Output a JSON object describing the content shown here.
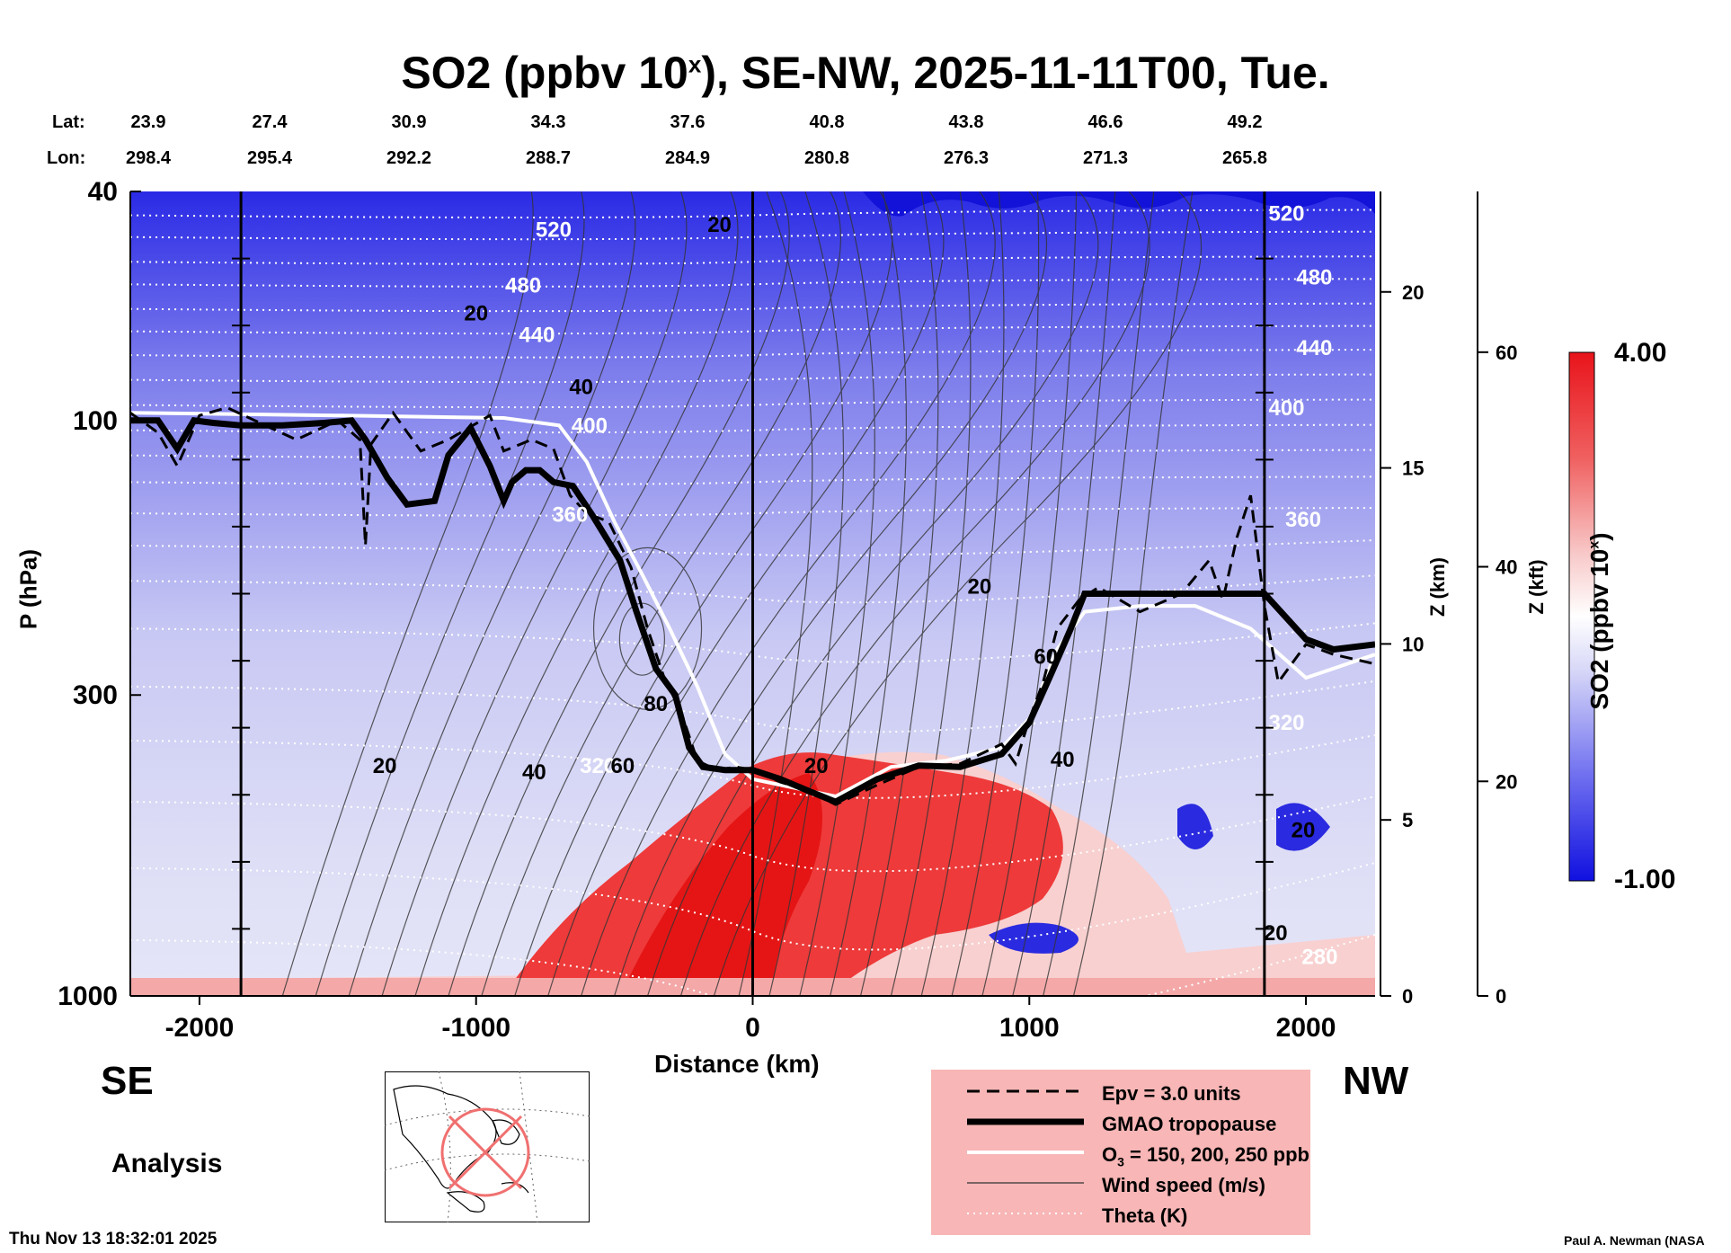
{
  "title": {
    "prefix": "SO2 (ppbv 10",
    "sup": "x",
    "suffix": "), SE-NW, 2025-11-11T00, Tue."
  },
  "lat_label": "Lat:",
  "lon_label": "Lon:",
  "lat_values": [
    "23.9",
    "27.4",
    "30.9",
    "34.3",
    "37.6",
    "40.8",
    "43.8",
    "46.6",
    "49.2"
  ],
  "lon_values": [
    "298.4",
    "295.4",
    "292.2",
    "288.7",
    "284.9",
    "280.8",
    "276.3",
    "271.3",
    "265.8"
  ],
  "direction_left": "SE",
  "direction_right": "NW",
  "analysis_label": "Analysis",
  "footer_timestamp": "Thu Nov 13 18:32:01 2025",
  "footer_credit": "Paul A. Newman (NASA",
  "legend": {
    "items": [
      {
        "label": "Epv = 3.0 units",
        "style": "dashed"
      },
      {
        "label": "GMAO tropopause",
        "style": "thick"
      },
      {
        "label": "O",
        "sub": "3",
        "tail": " = 150, 200, 250 ppb",
        "style": "white"
      },
      {
        "label": "Wind speed (m/s)",
        "style": "thin"
      },
      {
        "label": "Theta (K)",
        "style": "dotted"
      }
    ]
  },
  "colors": {
    "high": "#e8141b",
    "mid": "#ffffff",
    "low": "#1010e0",
    "legend_bg": "#f8b6b6",
    "map_marker": "#f07070"
  },
  "chart_data": {
    "type": "heatmap",
    "variable": "SO2",
    "xlabel": "Distance (km)",
    "ylabel": "P (hPa)",
    "y2label": "Z (km)",
    "y3label": "Z (kft)",
    "colorbar_label": "SO2 (ppbv 10",
    "colorbar_label_sup": "x",
    "colorbar_label_tail": ")",
    "xlim": [
      -2250,
      2250
    ],
    "ylim": [
      1000,
      40
    ],
    "y_scale": "log",
    "x_ticks": [
      -2000,
      -1000,
      0,
      1000,
      2000
    ],
    "y_ticks": [
      40,
      100,
      300,
      1000
    ],
    "z_km_ticks": [
      0,
      5,
      10,
      15,
      20
    ],
    "z_kft_ticks": [
      0,
      20,
      40,
      60
    ],
    "colorbar_range": [
      -1.0,
      4.0
    ],
    "colorbar_labels": [
      "4.00",
      "-1.00"
    ],
    "vertical_markers_km": [
      -1850,
      0,
      1850
    ],
    "theta_labels": [
      {
        "text": "520",
        "x": -720,
        "p": 48
      },
      {
        "text": "480",
        "x": -830,
        "p": 60
      },
      {
        "text": "440",
        "x": -780,
        "p": 73
      },
      {
        "text": "400",
        "x": -590,
        "p": 105
      },
      {
        "text": "360",
        "x": -660,
        "p": 150
      },
      {
        "text": "320",
        "x": -560,
        "p": 410
      },
      {
        "text": "520",
        "x": 1930,
        "p": 45
      },
      {
        "text": "480",
        "x": 2030,
        "p": 58
      },
      {
        "text": "440",
        "x": 2030,
        "p": 77
      },
      {
        "text": "400",
        "x": 1930,
        "p": 98
      },
      {
        "text": "360",
        "x": 1990,
        "p": 153
      },
      {
        "text": "320",
        "x": 1930,
        "p": 345
      },
      {
        "text": "280",
        "x": 2050,
        "p": 880
      }
    ],
    "wind_labels": [
      {
        "text": "20",
        "x": -1000,
        "p": 67
      },
      {
        "text": "40",
        "x": -620,
        "p": 90
      },
      {
        "text": "20",
        "x": -120,
        "p": 47
      },
      {
        "text": "80",
        "x": -350,
        "p": 320
      },
      {
        "text": "60",
        "x": -470,
        "p": 410
      },
      {
        "text": "40",
        "x": -790,
        "p": 420
      },
      {
        "text": "20",
        "x": -1330,
        "p": 410
      },
      {
        "text": "20",
        "x": 820,
        "p": 200
      },
      {
        "text": "60",
        "x": 1060,
        "p": 265
      },
      {
        "text": "40",
        "x": 1120,
        "p": 400
      },
      {
        "text": "20",
        "x": 230,
        "p": 410
      },
      {
        "text": "20",
        "x": 1990,
        "p": 530
      },
      {
        "text": "20",
        "x": 1890,
        "p": 800
      }
    ],
    "tropopause_x": [
      -2250,
      -2150,
      -2080,
      -2020,
      -1950,
      -1850,
      -1700,
      -1550,
      -1450,
      -1400,
      -1320,
      -1250,
      -1150,
      -1100,
      -1020,
      -950,
      -900,
      -870,
      -820,
      -770,
      -720,
      -650,
      -580,
      -480,
      -420,
      -350,
      -280,
      -230,
      -180,
      -100,
      0,
      100,
      200,
      300,
      450,
      600,
      750,
      900,
      1000,
      1080,
      1150,
      1200,
      1300,
      1450,
      1600,
      1750,
      1850,
      2000,
      2100,
      2250
    ],
    "tropopause_p": [
      100,
      100,
      112,
      100,
      101,
      102,
      102,
      101,
      100,
      108,
      126,
      140,
      138,
      115,
      103,
      120,
      138,
      128,
      122,
      122,
      128,
      130,
      146,
      175,
      215,
      270,
      300,
      370,
      400,
      405,
      405,
      420,
      440,
      460,
      420,
      398,
      400,
      380,
      335,
      275,
      230,
      200,
      200,
      200,
      200,
      200,
      200,
      240,
      250,
      245
    ],
    "o3_x": [
      -2250,
      -1500,
      -900,
      -700,
      -600,
      -500,
      -400,
      -300,
      -200,
      -100,
      0,
      200,
      300,
      500,
      700,
      900,
      1000,
      1100,
      1200,
      1400,
      1600,
      1800,
      2000,
      2250
    ],
    "o3_p": [
      97,
      98,
      99,
      102,
      118,
      150,
      185,
      230,
      290,
      380,
      420,
      440,
      450,
      400,
      390,
      370,
      330,
      250,
      215,
      210,
      210,
      230,
      280,
      255
    ],
    "epv_x": [
      -2250,
      -2150,
      -2080,
      -2000,
      -1900,
      -1800,
      -1650,
      -1500,
      -1420,
      -1400,
      -1380,
      -1300,
      -1200,
      -1100,
      -950,
      -900,
      -800,
      -720,
      -660,
      -600,
      -520,
      -440,
      -380,
      -320,
      -260,
      -200,
      -130,
      -60,
      0,
      100,
      200,
      300,
      450,
      600,
      750,
      900,
      950,
      1000,
      1050,
      1100,
      1180,
      1250,
      1400,
      1550,
      1650,
      1700,
      1750,
      1800,
      1850,
      1900,
      2000,
      2100,
      2250
    ],
    "epv_p": [
      97,
      105,
      120,
      98,
      95,
      100,
      108,
      100,
      108,
      165,
      110,
      97,
      113,
      108,
      98,
      113,
      108,
      112,
      135,
      145,
      150,
      180,
      230,
      280,
      320,
      390,
      405,
      400,
      405,
      425,
      440,
      465,
      430,
      400,
      395,
      365,
      395,
      330,
      285,
      230,
      205,
      195,
      215,
      200,
      175,
      205,
      160,
      135,
      210,
      285,
      245,
      255,
      265
    ]
  }
}
